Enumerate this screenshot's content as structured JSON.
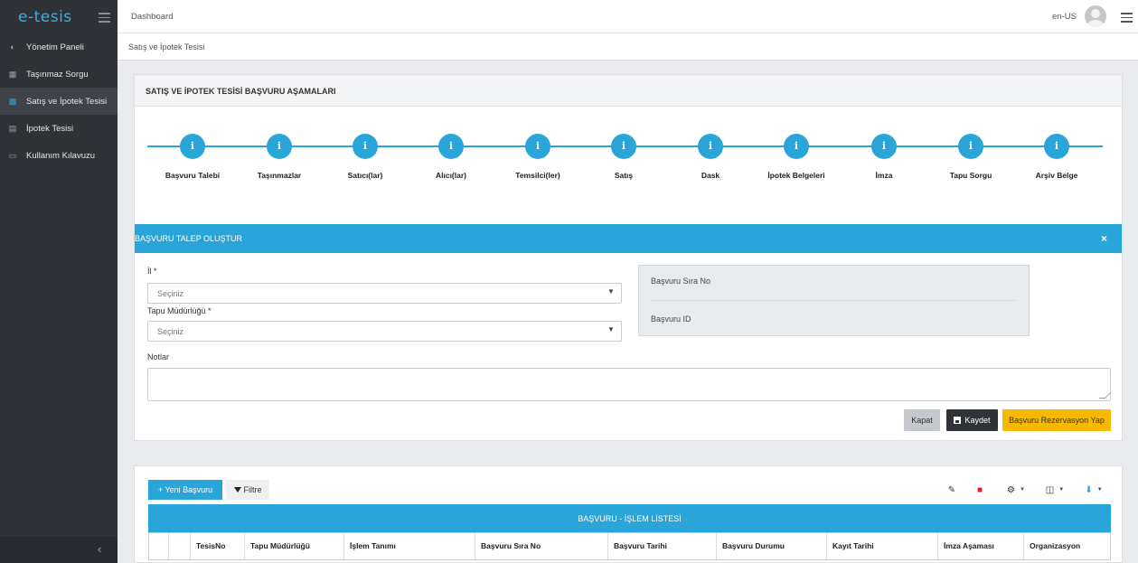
{
  "header": {
    "logo": "e-tesis",
    "breadcrumb": "Dashboard",
    "lang": "en-US"
  },
  "sidebar": {
    "items": [
      {
        "label": "Yönetim Paneli",
        "icon": "dashboard-icon"
      },
      {
        "label": "Taşınmaz Sorgu",
        "icon": "building-icon"
      },
      {
        "label": "Satış ve İpotek Tesisi",
        "icon": "briefcase-icon"
      },
      {
        "label": "İpotek Tesisi",
        "icon": "bank-icon"
      },
      {
        "label": "Kullanım Kılavuzu",
        "icon": "book-icon"
      }
    ],
    "active_index": 2
  },
  "page": {
    "breadcrumb": "Satış ve İpotek Tesisi",
    "card_title": "SATIŞ VE İPOTEK TESİSİ BAŞVURU AŞAMALARI",
    "steps": [
      {
        "icon": "i",
        "label": "Başvuru Talebi"
      },
      {
        "icon": "i",
        "label": "Taşınmazlar"
      },
      {
        "icon": "i",
        "label": "Satıcı(lar)"
      },
      {
        "icon": "i",
        "label": "Alıcı(lar)"
      },
      {
        "icon": "i",
        "label": "Temsilci(ler)"
      },
      {
        "icon": "i",
        "label": "Satış"
      },
      {
        "icon": "i",
        "label": "Dask"
      },
      {
        "icon": "i",
        "label": "İpotek Belgeleri"
      },
      {
        "icon": "i",
        "label": "İmza"
      },
      {
        "icon": "i",
        "label": "Tapu Sorgu"
      },
      {
        "icon": "i",
        "label": "Arşiv Belge"
      }
    ],
    "form": {
      "title": "BAŞVURU TALEP OLUŞTUR",
      "close_symbol": "×",
      "il_label": "İl *",
      "il_value": "Seçiniz",
      "tapu_label": "Tapu Müdürlüğü *",
      "tapu_value": "Seçiniz",
      "notes_label": "Notlar",
      "info_sira": "Başvuru Sıra No",
      "info_id": "Başvuru ID",
      "btn_close": "Kapat",
      "btn_save": "Kaydet",
      "btn_reserve": "Başvuru Rezervasyon Yap"
    },
    "list": {
      "btn_new": "+ Yeni Başvuru",
      "btn_filter": "Filtre",
      "title": "BAŞVURU - İŞLEM LİSTESİ",
      "columns": [
        "TesisNo",
        "Tapu Müdürlüğü",
        "İşlem Tanımı",
        "Başvuru Sıra No",
        "Başvuru Tarihi",
        "Başvuru Durumu",
        "Kayıt Tarihi",
        "İmza Aşaması",
        "Organizasyon"
      ],
      "colors": {
        "accent": "#2aa5d9",
        "warning": "#f6b800",
        "dark": "#2f3338",
        "danger": "#e31b23"
      }
    }
  }
}
